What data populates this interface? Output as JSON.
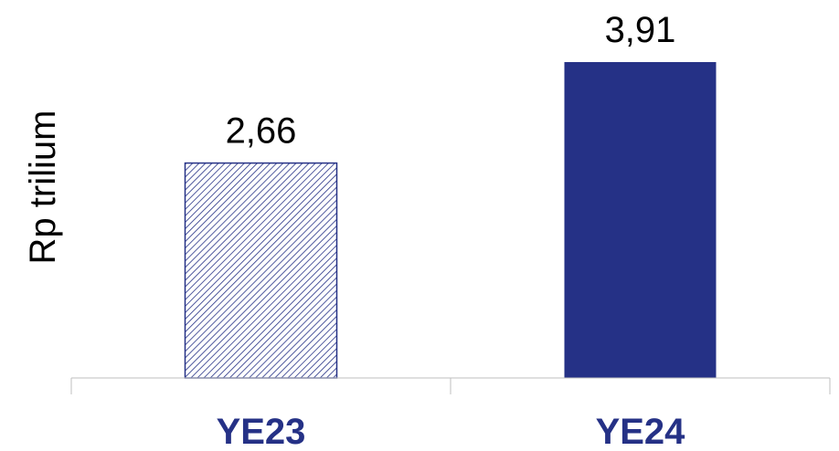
{
  "chart_data": {
    "type": "bar",
    "categories": [
      "YE23",
      "YE24"
    ],
    "values": [
      2.66,
      3.91
    ],
    "value_labels": [
      "2,66",
      "3,91"
    ],
    "ylabel": "Rp trilium",
    "ylim": [
      0,
      4.5
    ],
    "grid": false,
    "legend": "none",
    "colors": {
      "primary": "#253186",
      "category_label": "#253186",
      "axis": "#bfbfbf"
    },
    "bar_styles": [
      "hatched",
      "solid"
    ]
  }
}
